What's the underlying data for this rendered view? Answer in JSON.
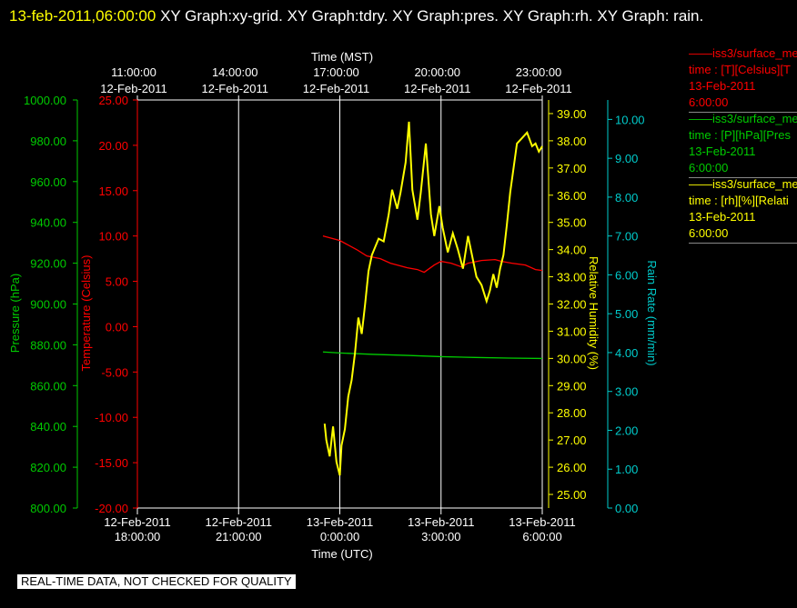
{
  "title": {
    "timestamp": "13-feb-2011,06:00:00",
    "rest": "XY Graph:xy-grid.  XY Graph:tdry.  XY Graph:pres.  XY Graph:rh.  XY Graph: rain."
  },
  "note": "REAL-TIME DATA, NOT CHECKED FOR QUALITY",
  "colors": {
    "tdry": "#ff0000",
    "pres": "#00cc00",
    "rh": "#ffff00",
    "rain": "#00cccc",
    "grid": "#ffffff"
  },
  "legend": [
    {
      "line1": "iss3/surface_me",
      "line2": "time : [T][Celsius][T",
      "line3": "13-Feb-2011",
      "line4": "6:00:00",
      "color": "#ff0000"
    },
    {
      "line1": "iss3/surface_me",
      "line2": "time : [P][hPa][Pres",
      "line3": "13-Feb-2011",
      "line4": "6:00:00",
      "color": "#00cc00"
    },
    {
      "line1": "iss3/surface_me",
      "line2": "time : [rh][%][Relati",
      "line3": "13-Feb-2011",
      "line4": "6:00:00",
      "color": "#ffff00"
    }
  ],
  "chart_data": {
    "type": "line",
    "x_axis_bottom": {
      "label": "Time (UTC)",
      "ticks": [
        {
          "date": "12-Feb-2011",
          "time": "18:00:00"
        },
        {
          "date": "12-Feb-2011",
          "time": "21:00:00"
        },
        {
          "date": "13-Feb-2011",
          "time": "0:00:00"
        },
        {
          "date": "13-Feb-2011",
          "time": "3:00:00"
        },
        {
          "date": "13-Feb-2011",
          "time": "6:00:00"
        }
      ],
      "range_hours_utc": [
        "2011-02-12 18:00",
        "2011-02-13 06:00"
      ]
    },
    "x_axis_top": {
      "label": "Time (MST)",
      "ticks": [
        {
          "time": "11:00:00",
          "date": "12-Feb-2011"
        },
        {
          "time": "14:00:00",
          "date": "12-Feb-2011"
        },
        {
          "time": "17:00:00",
          "date": "12-Feb-2011"
        },
        {
          "time": "20:00:00",
          "date": "12-Feb-2011"
        },
        {
          "time": "23:00:00",
          "date": "12-Feb-2011"
        }
      ]
    },
    "y_axes": {
      "pressure": {
        "label": "Pressure (hPa)",
        "ylim": [
          800,
          1000
        ],
        "ticks": [
          "800.00",
          "820.00",
          "840.00",
          "860.00",
          "880.00",
          "900.00",
          "920.00",
          "940.00",
          "960.00",
          "980.00",
          "1000.00"
        ]
      },
      "temperature": {
        "label": "Temperature (Celsius)",
        "ylim": [
          -20,
          25
        ],
        "ticks": [
          "-20.00",
          "-15.00",
          "-10.00",
          "-5.00",
          "0.00",
          "5.00",
          "10.00",
          "15.00",
          "20.00",
          "25.00"
        ]
      },
      "rh": {
        "label": "Relative Humidity (%)",
        "ylim": [
          24.5,
          39.5
        ],
        "ticks": [
          "25.00",
          "26.00",
          "27.00",
          "28.00",
          "29.00",
          "30.00",
          "31.00",
          "32.00",
          "33.00",
          "34.00",
          "35.00",
          "36.00",
          "37.00",
          "38.00",
          "39.00"
        ]
      },
      "rain": {
        "label": "Rain Rate (mm/min)",
        "ylim": [
          0,
          10.5
        ],
        "ticks": [
          "0.00",
          "1.00",
          "2.00",
          "3.00",
          "4.00",
          "5.00",
          "6.00",
          "7.00",
          "8.00",
          "9.00",
          "10.00"
        ]
      }
    },
    "series": [
      {
        "name": "iss3/surface_me",
        "key": "tdry",
        "axis": "temperature",
        "x_hours_utc": [
          -0.5,
          0,
          0.5,
          0.8,
          1.2,
          1.5,
          2.0,
          2.3,
          2.5,
          2.8,
          3.0,
          3.3,
          3.6,
          3.8,
          4.2,
          4.6,
          4.8,
          5.1,
          5.5,
          5.8,
          6.0
        ],
        "values": [
          10.0,
          9.5,
          8.5,
          7.8,
          7.5,
          7.0,
          6.5,
          6.3,
          6.0,
          6.8,
          7.2,
          7.0,
          6.6,
          7.0,
          7.3,
          7.4,
          7.2,
          7.0,
          6.8,
          6.3,
          6.2
        ]
      },
      {
        "name": "iss3/surface_me",
        "key": "pres",
        "axis": "pressure",
        "x_hours_utc": [
          -0.5,
          0,
          1,
          2,
          3,
          4,
          5,
          6
        ],
        "values": [
          876.5,
          876.0,
          875.3,
          874.8,
          874.2,
          873.8,
          873.5,
          873.3
        ]
      },
      {
        "name": "iss3/surface_me",
        "key": "rh",
        "axis": "rh",
        "x_hours_utc": [
          -0.45,
          -0.4,
          -0.3,
          -0.2,
          -0.1,
          0,
          0.05,
          0.15,
          0.25,
          0.35,
          0.45,
          0.55,
          0.65,
          0.75,
          0.85,
          0.95,
          1.05,
          1.15,
          1.3,
          1.45,
          1.55,
          1.7,
          1.8,
          1.95,
          2.05,
          2.15,
          2.3,
          2.4,
          2.55,
          2.7,
          2.8,
          2.95,
          3.05,
          3.2,
          3.35,
          3.5,
          3.65,
          3.8,
          3.9,
          4.05,
          4.2,
          4.35,
          4.45,
          4.55,
          4.65,
          4.75,
          4.85,
          4.95,
          5.05,
          5.15,
          5.25,
          5.4,
          5.55,
          5.7,
          5.8,
          5.9,
          6.0
        ],
        "values": [
          27.6,
          27.0,
          26.4,
          27.5,
          26.2,
          25.7,
          26.8,
          27.4,
          28.6,
          29.2,
          30.2,
          31.5,
          30.9,
          32.0,
          33.2,
          33.8,
          34.1,
          34.4,
          34.3,
          35.3,
          36.2,
          35.5,
          36.1,
          37.2,
          38.7,
          36.2,
          35.1,
          36.1,
          37.9,
          35.3,
          34.5,
          35.6,
          34.8,
          33.9,
          34.6,
          34.0,
          33.3,
          34.5,
          33.9,
          33.0,
          32.7,
          32.1,
          32.5,
          33.1,
          32.6,
          33.3,
          33.8,
          34.9,
          36.1,
          37.0,
          37.9,
          38.1,
          38.3,
          37.8,
          37.9,
          37.6,
          37.8
        ]
      },
      {
        "name": "",
        "key": "rain",
        "axis": "rain",
        "x_hours_utc": [],
        "values": []
      }
    ]
  }
}
